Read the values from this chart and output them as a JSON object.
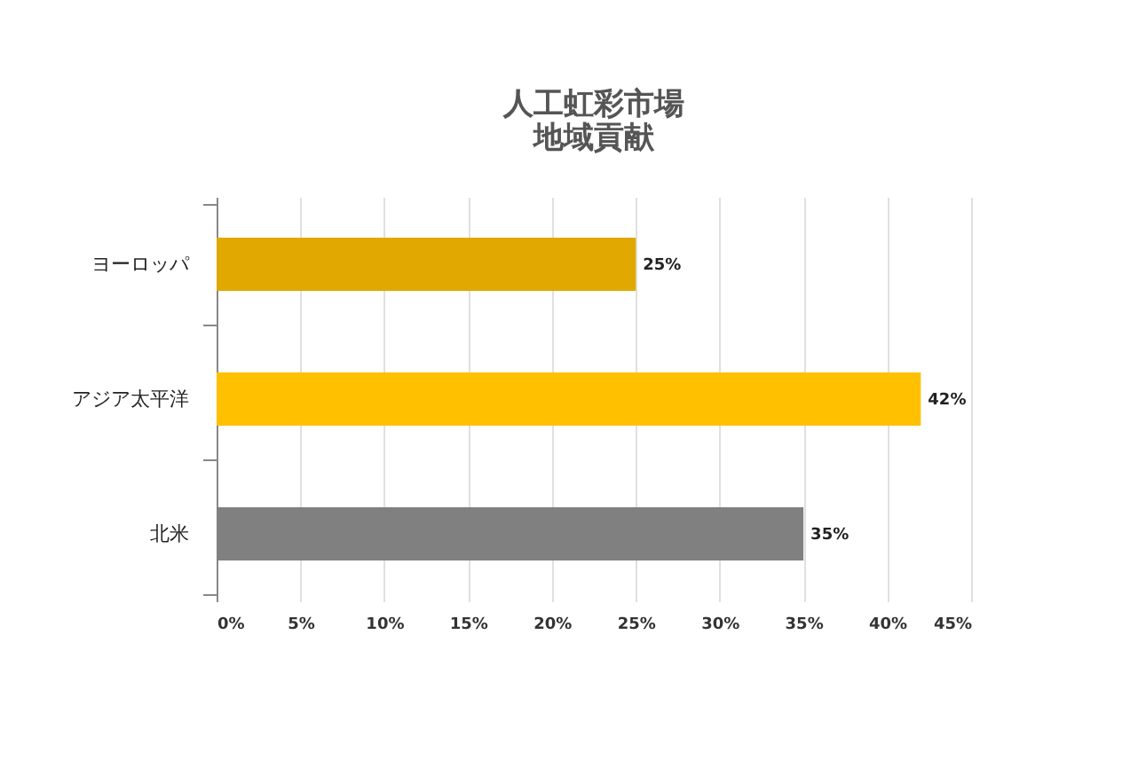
{
  "chart_data": {
    "type": "bar",
    "orientation": "horizontal",
    "title": "人工虹彩市場",
    "subtitle": "地域貢献",
    "categories": [
      "ヨーロッパ",
      "アジア太平洋",
      "北米"
    ],
    "values": [
      25,
      42,
      35
    ],
    "colors": [
      "#e0a800",
      "#ffc000",
      "#808080"
    ],
    "value_labels": [
      "25%",
      "42%",
      "35%"
    ],
    "xlim": [
      0,
      45
    ],
    "xticks": [
      {
        "value": 0,
        "label": "0%"
      },
      {
        "value": 5,
        "label": "5%"
      },
      {
        "value": 10,
        "label": "10%"
      },
      {
        "value": 15,
        "label": "15%"
      },
      {
        "value": 20,
        "label": "20%"
      },
      {
        "value": 25,
        "label": "25%"
      },
      {
        "value": 30,
        "label": "30%"
      },
      {
        "value": 35,
        "label": "35%"
      },
      {
        "value": 40,
        "label": "40%"
      },
      {
        "value": 45,
        "label": "45%"
      }
    ],
    "grid": "x",
    "legend": false
  }
}
